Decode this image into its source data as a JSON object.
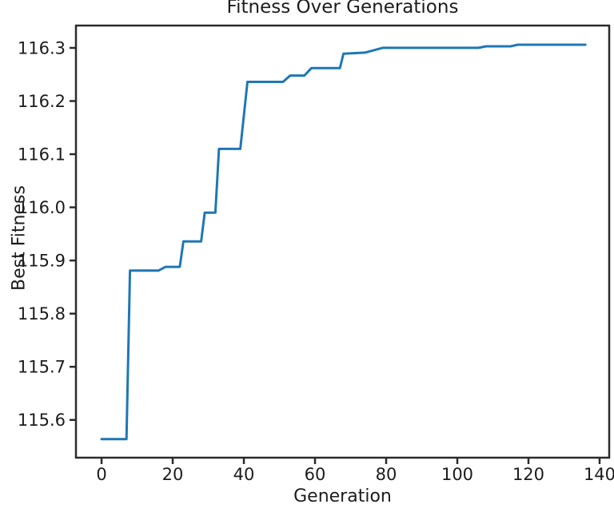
{
  "figure": {
    "title": "Fitness Over Generations",
    "xlabel": "Generation",
    "ylabel": "Best Fitness"
  },
  "colors": {
    "line": "#1f77b4",
    "spine": "#2b2b2b",
    "tick_text": "#1c1c1c",
    "background": "#ffffff"
  },
  "chart_data": {
    "type": "line",
    "title": "Fitness Over Generations",
    "xlabel": "Generation",
    "ylabel": "Best Fitness",
    "grid": false,
    "legend": "none",
    "xlim": [
      -7.2,
      142.7
    ],
    "ylim": [
      115.529,
      116.342
    ],
    "xtick_values": [
      0,
      20,
      40,
      60,
      80,
      100,
      120,
      140
    ],
    "xtick_labels": [
      "0",
      "20",
      "40",
      "60",
      "80",
      "100",
      "120",
      "140"
    ],
    "ytick_values": [
      115.6,
      115.7,
      115.8,
      115.9,
      116.0,
      116.1,
      116.2,
      116.3
    ],
    "ytick_labels": [
      "115.6",
      "115.7",
      "115.8",
      "115.9",
      "116.0",
      "116.1",
      "116.2",
      "116.3"
    ],
    "series": [
      {
        "name": "Best Fitness",
        "color": "#1f77b4",
        "x": [
          0,
          7,
          8,
          16,
          18,
          22,
          23,
          28,
          29,
          32,
          33,
          39,
          41,
          51,
          53,
          57,
          59,
          67,
          68,
          74,
          79,
          106,
          108,
          115,
          117,
          136
        ],
        "y": [
          115.564,
          115.564,
          115.881,
          115.881,
          115.888,
          115.888,
          115.936,
          115.936,
          115.99,
          115.99,
          116.11,
          116.11,
          116.236,
          116.236,
          116.248,
          116.248,
          116.262,
          116.262,
          116.289,
          116.291,
          116.3,
          116.3,
          116.303,
          116.303,
          116.306,
          116.306
        ]
      }
    ]
  }
}
